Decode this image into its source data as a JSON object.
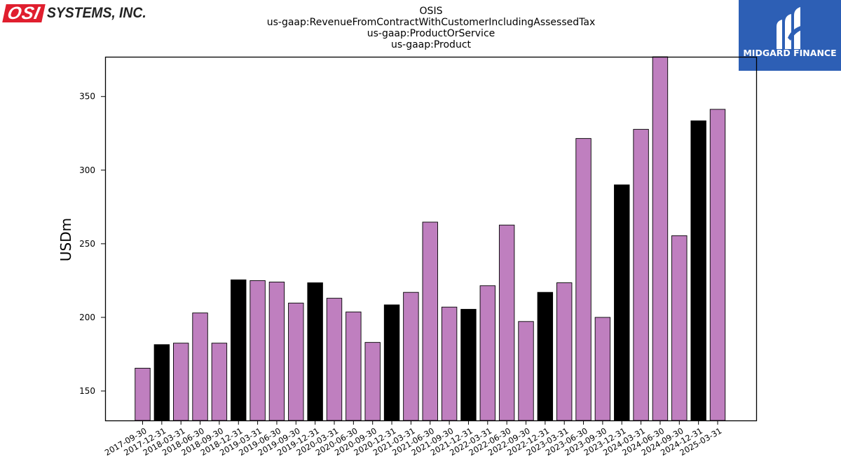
{
  "header": {
    "company_logo_mark": "OSI",
    "company_logo_text": "SYSTEMS, INC.",
    "sponsor_logo_text": "MIDGARD FINANCE"
  },
  "colors": {
    "bar_primary": "#bf7fbf",
    "bar_highlight": "#000000",
    "osi_red": "#e01e2e",
    "midgard_blue": "#2d5fb5"
  },
  "chart_data": {
    "type": "bar",
    "title_lines": [
      "OSIS",
      "us-gaap:RevenueFromContractWithCustomerIncludingAssessedTax",
      "us-gaap:ProductOrService",
      "us-gaap:Product"
    ],
    "xlabel": "",
    "ylabel": "USDm",
    "ylim": [
      130,
      377
    ],
    "yticks": [
      150,
      200,
      250,
      300,
      350
    ],
    "grid": false,
    "categories": [
      "2017-09-30",
      "2017-12-31",
      "2018-03-31",
      "2018-06-30",
      "2018-09-30",
      "2018-12-31",
      "2019-03-31",
      "2019-06-30",
      "2019-09-30",
      "2019-12-31",
      "2020-03-31",
      "2020-06-30",
      "2020-09-30",
      "2020-12-31",
      "2021-03-31",
      "2021-06-30",
      "2021-09-30",
      "2021-12-31",
      "2022-03-31",
      "2022-06-30",
      "2022-09-30",
      "2022-12-31",
      "2023-03-31",
      "2023-06-30",
      "2023-09-30",
      "2023-12-31",
      "2024-03-31",
      "2024-06-30",
      "2024-09-30",
      "2024-12-31",
      "2025-03-31"
    ],
    "values": [
      165.5,
      181.5,
      182.5,
      203.0,
      182.5,
      225.5,
      225.0,
      224.0,
      209.7,
      223.5,
      213.0,
      203.7,
      183.0,
      208.5,
      217.0,
      264.7,
      207.0,
      205.5,
      221.5,
      262.7,
      197.2,
      217.0,
      223.5,
      321.5,
      200.0,
      290.0,
      327.7,
      377.0,
      255.5,
      333.5,
      341.3
    ],
    "highlight": [
      false,
      true,
      false,
      false,
      false,
      true,
      false,
      false,
      false,
      true,
      false,
      false,
      false,
      true,
      false,
      false,
      false,
      true,
      false,
      false,
      false,
      true,
      false,
      false,
      false,
      true,
      false,
      false,
      false,
      true,
      false
    ]
  }
}
